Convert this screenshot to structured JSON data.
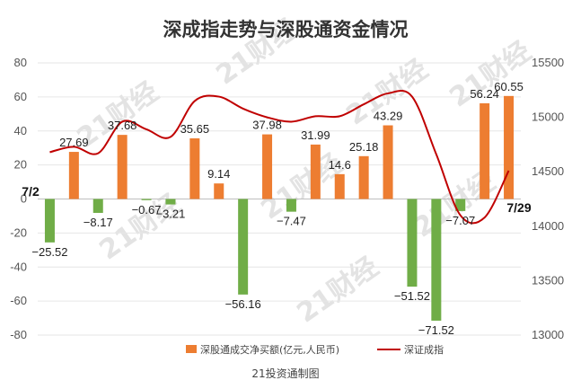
{
  "chart_data": {
    "type": "bar",
    "title": "深成指走势与深股通资金情况",
    "source": "21投资通制图",
    "watermark": "21财经",
    "start_label": "7/2",
    "end_label": "7/29",
    "left_axis": {
      "ylim": [
        -80,
        80
      ],
      "ticks": [
        80,
        60,
        40,
        20,
        0,
        -20,
        -40,
        -60,
        -80
      ]
    },
    "right_axis": {
      "ylim": [
        13000,
        15500
      ],
      "ticks": [
        15500,
        15000,
        14500,
        14000,
        13500,
        13000
      ]
    },
    "series": [
      {
        "name": "深股通成交净买额(亿元,人民币)",
        "type": "bar",
        "axis": "left",
        "values": [
          -25.52,
          27.69,
          -8.17,
          37.68,
          -0.67,
          -3.21,
          35.65,
          9.14,
          -56.16,
          37.98,
          -7.47,
          31.99,
          14.6,
          25.18,
          43.29,
          -51.52,
          -71.52,
          -7.07,
          56.24,
          60.55
        ],
        "labels": [
          "−25.52",
          "27.69",
          "−8.17",
          "37.68",
          "−0.67",
          "−3.21",
          "35.65",
          "9.14",
          "−56.16",
          "37.98",
          "−7.47",
          "31.99",
          "14.6",
          "25.18",
          "43.29",
          "−51.52",
          "−71.52",
          "−7.07",
          "56.24",
          "60.55"
        ],
        "color_positive": "#ed7d31",
        "color_negative": "#70ad47"
      },
      {
        "name": "深证成指",
        "type": "line",
        "axis": "right",
        "values": [
          14680,
          14730,
          14670,
          14960,
          14890,
          14820,
          15150,
          15190,
          15080,
          15000,
          14960,
          15010,
          15010,
          15120,
          15220,
          15190,
          14660,
          14100,
          14080,
          14510
        ],
        "color": "#c00000"
      }
    ]
  }
}
